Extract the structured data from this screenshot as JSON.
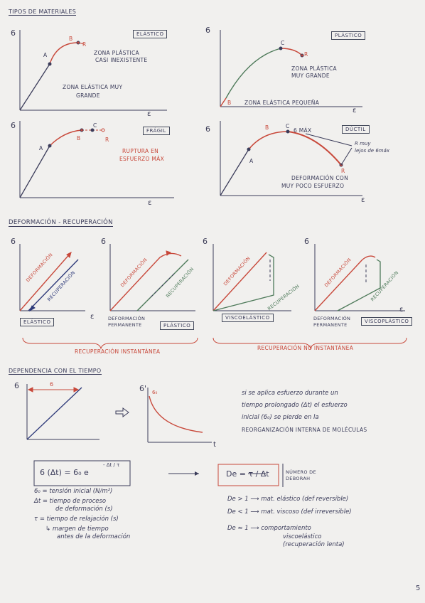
{
  "section1": {
    "title": "Tipos de materiales",
    "elastic_box": "Elástico",
    "elastic_zone_plastic": "Zona plástica",
    "elastic_zone_plastic2": "casi inexistente",
    "elastic_zone_elastic": "Zona elástica muy",
    "elastic_zone_elastic2": "grande",
    "plastic_box": "Plástico",
    "plastic_zone_plastic": "Zona plástica",
    "plastic_zone_plastic2": "muy grande",
    "plastic_zone_elastic": "Zona elástica pequeña",
    "fragil_box": "Frágil",
    "fragil_note1": "Ruptura en",
    "fragil_note2": "esfuerzo máx",
    "ductil_box": "Dúctil",
    "ductil_sigma": "6 máx",
    "ductil_note1": "R muy",
    "ductil_note2": "lejos de 6máx",
    "ductil_def1": "Deformación con",
    "ductil_def2": "muy poco esfuerzo",
    "sigma": "6",
    "epsilon": "ε",
    "A": "A",
    "B": "B",
    "C": "C",
    "R": "R"
  },
  "section2": {
    "title": "Deformación - recuperación",
    "deformacion": "Deformación",
    "recuperacion": "Recuperación",
    "elastico_box": "Elástico",
    "def_perm1": "Deformación",
    "def_perm2": "permanente",
    "plastico_box": "Plástico",
    "visco_box": "Viscoelástico",
    "viscoplast_box": "Viscoplástico",
    "recup_inst": "Recuperación instantánea",
    "recup_no_inst": "Recuperación no instantánea"
  },
  "section3": {
    "title": "Dependencia con el tiempo",
    "sigma_label": "6",
    "sigma0_label": "6₀",
    "sigma_plot": "6",
    "sigma_plot2": "6'",
    "t_label": "t",
    "text1": "si se aplica esfuerzo durante un",
    "text2": "tiempo prolongado (Δt) el esfuerzo",
    "text3": "inicial (6₀) se pierde en la",
    "text4": "reorganización interna de moléculas",
    "formula": "6 (Δt) = 6₀ e",
    "formula_exp": "- Δt / τ",
    "def1": "6₀ = tensión inicial (N/m²)",
    "def2": "Δt = tiempo de proceso",
    "def2b": "de deformación (s)",
    "def3": "τ = tiempo de relajación (s)",
    "def4": "↳ margen de tiempo",
    "def4b": "antes de la deformación",
    "deborah_formula": "De = τ / Δt",
    "deborah_label1": "número de",
    "deborah_label2": "Deborah",
    "de1": "De > 1 ⟶ mat. elástico (def reversible)",
    "de2": "De < 1 ⟶ mat. viscoso (def irreversible)",
    "de3": "De ≈ 1 ⟶ comportamiento",
    "de3b": "viscoelástico",
    "de3c": "(recuperación lenta)"
  },
  "page_number": "5",
  "colors": {
    "ink": "#3b3c5a",
    "red": "#c8483a",
    "green": "#4e7a5a",
    "navy": "#2e3a7a"
  }
}
